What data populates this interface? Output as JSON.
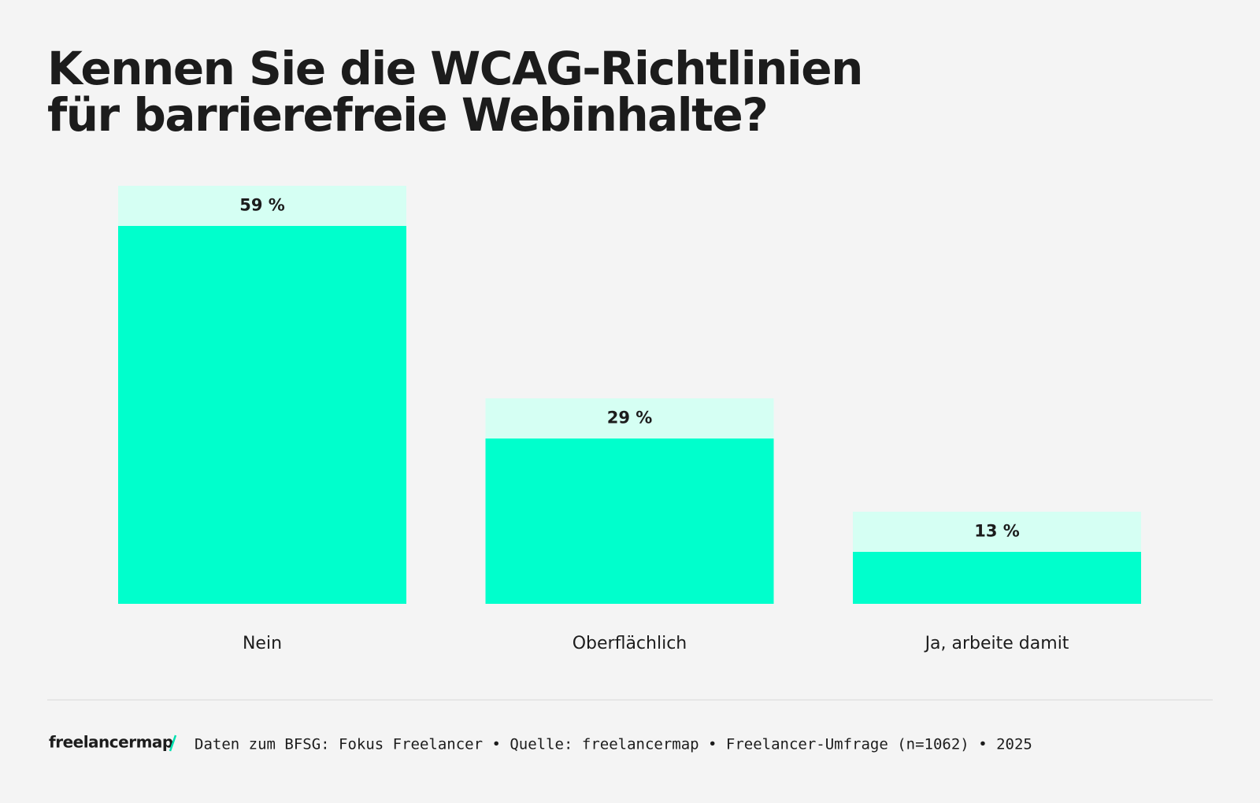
{
  "chart_data": {
    "type": "bar",
    "title": [
      "Kennen Sie die WCAG-Richtlinien",
      "für barrierefreie Webinhalte?"
    ],
    "categories": [
      "Nein",
      "Oberflächlich",
      "Ja, arbeite damit"
    ],
    "values": [
      59,
      29,
      13
    ],
    "value_labels": [
      "59 %",
      "29 %",
      "13 %"
    ],
    "color": "#00ffcc",
    "logo": "freelancermap",
    "source": "Daten zum BFSG: Fokus Freelancer • Quelle: freelancermap • Freelancer-Umfrage (n=1062) • 2025"
  }
}
